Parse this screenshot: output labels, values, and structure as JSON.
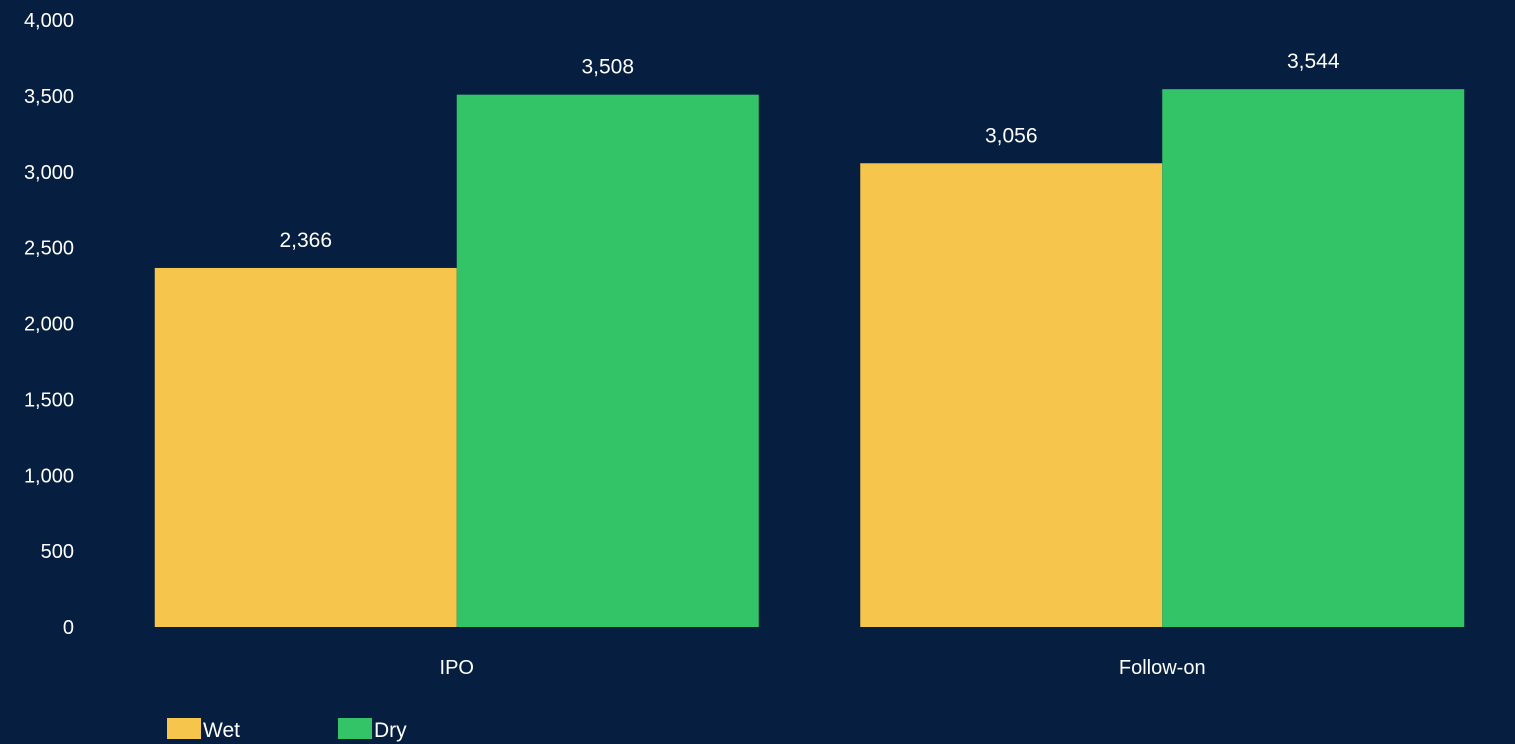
{
  "colors": {
    "background": "#061f40",
    "text": "#ffffff"
  },
  "chart_data": {
    "type": "bar",
    "title": "",
    "xlabel": "",
    "ylabel": "",
    "categories": [
      "IPO",
      "Follow-on"
    ],
    "series": [
      {
        "name": "Wet",
        "color": "#f6c54b",
        "values": [
          2366,
          3056
        ],
        "labels": [
          "2,366",
          "3,056"
        ]
      },
      {
        "name": "Dry",
        "color": "#33c468",
        "values": [
          3508,
          3544
        ],
        "labels": [
          "3,508",
          "3,544"
        ]
      }
    ],
    "ylim": [
      0,
      4000
    ],
    "yticks": [
      0,
      500,
      1000,
      1500,
      2000,
      2500,
      3000,
      3500,
      4000
    ],
    "ytick_labels": [
      "0",
      "500",
      "1,000",
      "1,500",
      "2,000",
      "2,500",
      "3,000",
      "3,500",
      "4,000"
    ],
    "grid": false,
    "legend_position": "bottom-left"
  }
}
